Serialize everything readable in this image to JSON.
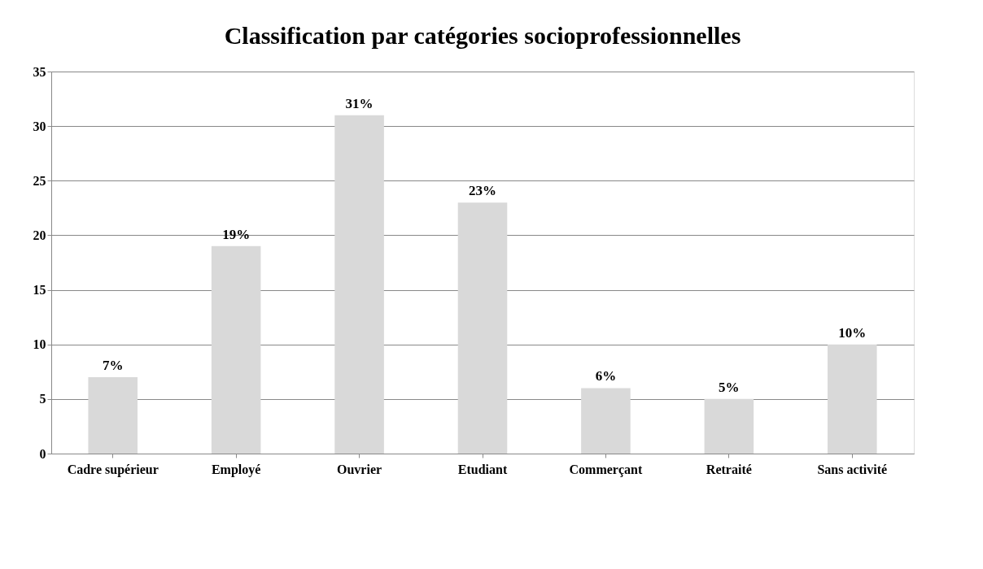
{
  "chart_data": {
    "type": "bar",
    "title": "Classification par catégories socioprofessionnelles",
    "categories": [
      "Cadre supérieur",
      "Employé",
      "Ouvrier",
      "Etudiant",
      "Commerçant",
      "Retraité",
      "Sans activité"
    ],
    "values": [
      7,
      19,
      31,
      23,
      6,
      5,
      10
    ],
    "value_labels": [
      "7%",
      "19%",
      "31%",
      "23%",
      "6%",
      "5%",
      "10%"
    ],
    "color": "#d9d9d9",
    "ylim": [
      0,
      35
    ],
    "yticks": [
      0,
      5,
      10,
      15,
      20,
      25,
      30,
      35
    ],
    "grid": "y"
  }
}
